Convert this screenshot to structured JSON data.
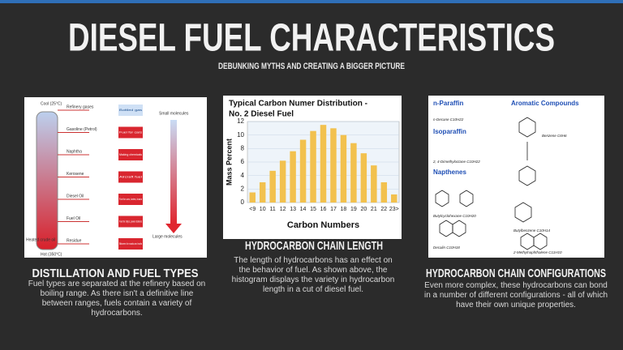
{
  "header": {
    "title": "DIESEL FUEL CHARACTERISTICS",
    "subtitle": "DEBUNKING MYTHS AND CREATING A BIGGER PICTURE"
  },
  "panels": [
    {
      "heading": "DISTILLATION AND FUEL TYPES",
      "text": "Fuel types are separated at the refinery based on boiling range. As there isn't a definitive line between ranges, fuels contain a variety of hydrocarbons."
    },
    {
      "heading": "HYDROCARBON CHAIN LENGTH",
      "text": "The length of hydrocarbons has an effect on the behavior of fuel.  As shown above, the histogram displays the variety in hydrocarbon length in a cut of diesel fuel."
    },
    {
      "heading": "HYDROCARBON CHAIN CONFIGURATIONS",
      "text": "Even more complex, these hydrocarbons can bond in a number of different configurations - all of which have their own unique properties."
    }
  ],
  "distillation": {
    "top": "Cool (25°C)",
    "bottom": "Hot (350°C)",
    "input": "Heated crude oil",
    "fractions": [
      {
        "name": "Refinery gases",
        "use": "Bottled gas"
      },
      {
        "name": "Gasoline (Petrol)",
        "use": "Fuel for cars"
      },
      {
        "name": "Naphtha",
        "use": "Making chemicals"
      },
      {
        "name": "Kerosene",
        "use": "Aircraft fuel"
      },
      {
        "name": "Diesel Oil",
        "use": "Fuel for cars, lorries, buses"
      },
      {
        "name": "Fuel Oil",
        "use": "Fuel for ships, power stations"
      },
      {
        "name": "Residue",
        "use": "Bitumen for roads and roofs"
      }
    ],
    "notes": [
      "Small molecules",
      "Large molecules"
    ]
  },
  "chart_data": {
    "type": "bar",
    "title": "Typical Carbon Numer Distribution -",
    "subtitle": "No. 2 Diesel Fuel",
    "x_label": "Carbon Numbers",
    "y_label": "Mass Percent",
    "categories": [
      "<9",
      "10",
      "11",
      "12",
      "13",
      "14",
      "15",
      "16",
      "17",
      "18",
      "19",
      "20",
      "21",
      "22",
      "23>"
    ],
    "values": [
      1.5,
      3,
      4.7,
      6.2,
      7.6,
      9.3,
      10.6,
      11.5,
      11,
      10,
      8.8,
      7.3,
      5.5,
      3,
      1.2
    ],
    "color": "#f2c14e",
    "ylim": [
      0,
      12
    ],
    "yticks": [
      0,
      2,
      4,
      6,
      8,
      10,
      12
    ],
    "grid": true
  },
  "structures": {
    "groups": [
      "n-Paraffin",
      "Isoparaffin",
      "Napthenes",
      "Aromatic Compounds"
    ],
    "names": [
      "n-Decane C10H22",
      "2, 4-Dimethyloctane C10H22",
      "Butylcyclohexane C10H20",
      "Decalin C10H18",
      "Benzene C6H6",
      "Butylbenzene C10H14",
      "2-Methylnaphthalene C11H10"
    ]
  }
}
